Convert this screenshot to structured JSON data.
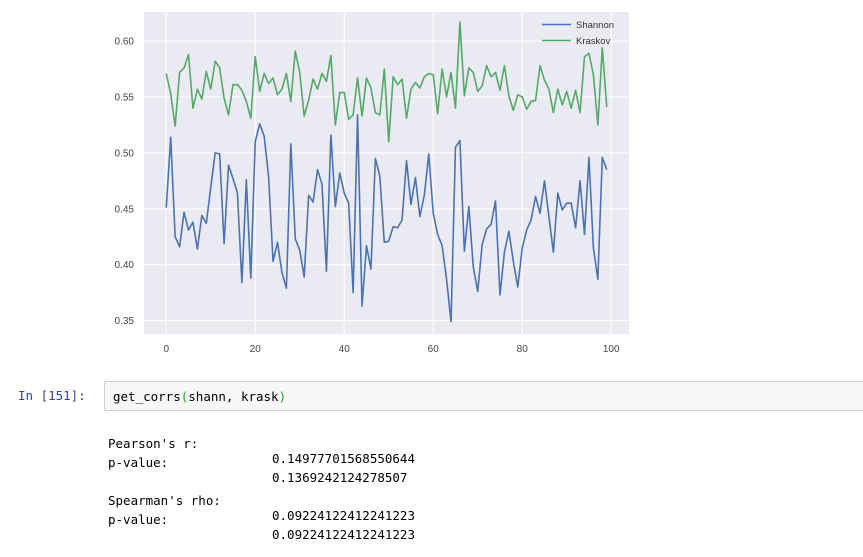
{
  "notebook": {
    "prompt": "In [151]:",
    "code": {
      "func": "get_corrs",
      "open_paren": "(",
      "args": "shann, krask",
      "close_paren": ")"
    },
    "output": [
      {
        "label": "Pearson's r:",
        "value": "0.14977701568550644"
      },
      {
        "label": "p-value:",
        "value": "0.1369242124278507"
      },
      {
        "label": "Spearman's rho:",
        "value": "0.09224122412241223"
      },
      {
        "label": "p-value:",
        "value": "0.09224122412241223"
      }
    ]
  },
  "chart_data": {
    "type": "line",
    "title": "",
    "xlabel": "",
    "ylabel": "",
    "xlim": [
      -5,
      104
    ],
    "ylim": [
      0.338,
      0.626
    ],
    "x_ticks": [
      "0",
      "20",
      "40",
      "60",
      "80",
      "100"
    ],
    "y_ticks": [
      "0.35",
      "0.40",
      "0.45",
      "0.50",
      "0.55",
      "0.60"
    ],
    "grid": true,
    "legend": "top-right",
    "background": "#EAEAF2",
    "x": [
      0,
      1,
      2,
      3,
      4,
      5,
      6,
      7,
      8,
      9,
      10,
      11,
      12,
      13,
      14,
      15,
      16,
      17,
      18,
      19,
      20,
      21,
      22,
      23,
      24,
      25,
      26,
      27,
      28,
      29,
      30,
      31,
      32,
      33,
      34,
      35,
      36,
      37,
      38,
      39,
      40,
      41,
      42,
      43,
      44,
      45,
      46,
      47,
      48,
      49,
      50,
      51,
      52,
      53,
      54,
      55,
      56,
      57,
      58,
      59,
      60,
      61,
      62,
      63,
      64,
      65,
      66,
      67,
      68,
      69,
      70,
      71,
      72,
      73,
      74,
      75,
      76,
      77,
      78,
      79,
      80,
      81,
      82,
      83,
      84,
      85,
      86,
      87,
      88,
      89,
      90,
      91,
      92,
      93,
      94,
      95,
      96,
      97,
      98,
      99
    ],
    "series": [
      {
        "name": "Shannon",
        "color": "#4C72B0",
        "values": [
          0.451,
          0.514,
          0.425,
          0.416,
          0.447,
          0.431,
          0.438,
          0.414,
          0.444,
          0.437,
          0.469,
          0.5,
          0.499,
          0.419,
          0.489,
          0.477,
          0.464,
          0.384,
          0.476,
          0.388,
          0.51,
          0.526,
          0.515,
          0.479,
          0.403,
          0.42,
          0.393,
          0.379,
          0.508,
          0.423,
          0.413,
          0.389,
          0.462,
          0.456,
          0.485,
          0.472,
          0.394,
          0.516,
          0.452,
          0.482,
          0.464,
          0.455,
          0.375,
          0.534,
          0.363,
          0.417,
          0.396,
          0.495,
          0.479,
          0.42,
          0.421,
          0.434,
          0.433,
          0.44,
          0.493,
          0.454,
          0.478,
          0.443,
          0.462,
          0.499,
          0.446,
          0.427,
          0.417,
          0.387,
          0.349,
          0.505,
          0.511,
          0.412,
          0.452,
          0.398,
          0.376,
          0.418,
          0.432,
          0.436,
          0.457,
          0.373,
          0.411,
          0.43,
          0.403,
          0.38,
          0.415,
          0.431,
          0.44,
          0.461,
          0.446,
          0.475,
          0.443,
          0.411,
          0.464,
          0.449,
          0.455,
          0.455,
          0.433,
          0.475,
          0.427,
          0.496,
          0.415,
          0.387,
          0.496,
          0.485
        ]
      },
      {
        "name": "Kraskov",
        "color": "#55A868",
        "values": [
          0.571,
          0.553,
          0.524,
          0.572,
          0.576,
          0.588,
          0.54,
          0.557,
          0.548,
          0.573,
          0.557,
          0.582,
          0.576,
          0.549,
          0.534,
          0.561,
          0.561,
          0.556,
          0.546,
          0.531,
          0.586,
          0.555,
          0.571,
          0.562,
          0.567,
          0.552,
          0.557,
          0.571,
          0.546,
          0.591,
          0.572,
          0.533,
          0.547,
          0.566,
          0.557,
          0.571,
          0.564,
          0.587,
          0.525,
          0.554,
          0.554,
          0.53,
          0.534,
          0.567,
          0.533,
          0.567,
          0.558,
          0.536,
          0.534,
          0.575,
          0.51,
          0.568,
          0.561,
          0.566,
          0.531,
          0.557,
          0.563,
          0.558,
          0.568,
          0.571,
          0.57,
          0.535,
          0.575,
          0.55,
          0.572,
          0.54,
          0.617,
          0.551,
          0.576,
          0.572,
          0.555,
          0.56,
          0.578,
          0.568,
          0.572,
          0.556,
          0.578,
          0.551,
          0.538,
          0.552,
          0.55,
          0.539,
          0.546,
          0.547,
          0.578,
          0.565,
          0.557,
          0.536,
          0.557,
          0.543,
          0.555,
          0.54,
          0.556,
          0.536,
          0.586,
          0.589,
          0.57,
          0.525,
          0.594,
          0.541
        ]
      }
    ]
  }
}
